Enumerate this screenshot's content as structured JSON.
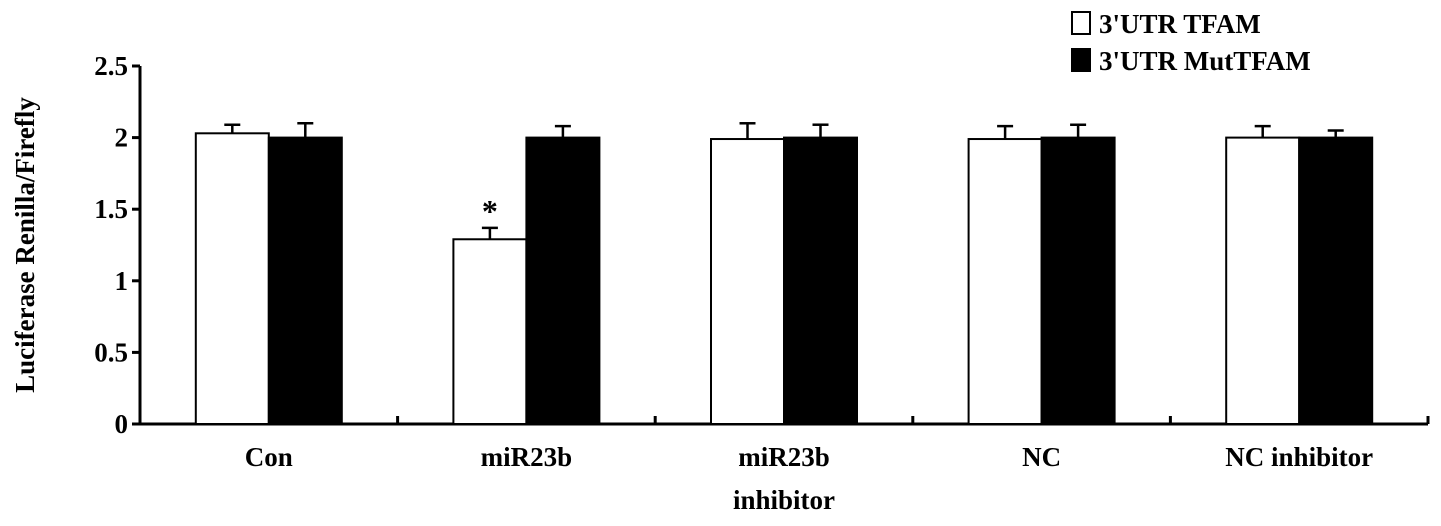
{
  "chart_data": {
    "type": "bar",
    "title": "",
    "xlabel": "",
    "ylabel": "Luciferase Renilla/Firefly",
    "ylim": [
      0,
      2.5
    ],
    "yticks": [
      "0",
      "0.5",
      "1",
      "1.5",
      "2",
      "2.5"
    ],
    "categories": [
      [
        "Con"
      ],
      [
        "miR23b"
      ],
      [
        "miR23b",
        "inhibitor"
      ],
      [
        "NC"
      ],
      [
        "NC inhibitor"
      ]
    ],
    "series": [
      {
        "name": "3'UTR TFAM",
        "color": "#ffffff",
        "values": [
          2.03,
          1.29,
          1.99,
          1.99,
          2.0
        ],
        "errors": [
          0.06,
          0.08,
          0.11,
          0.09,
          0.08
        ]
      },
      {
        "name": "3'UTR MutTFAM",
        "color": "#000000",
        "values": [
          2.0,
          2.0,
          2.0,
          2.0,
          2.0
        ],
        "errors": [
          0.1,
          0.08,
          0.09,
          0.09,
          0.05
        ]
      }
    ],
    "annotations": [
      {
        "text": "*",
        "category_index": 1,
        "series_index": 0
      }
    ],
    "legend_position": "top-right",
    "grid": false
  }
}
